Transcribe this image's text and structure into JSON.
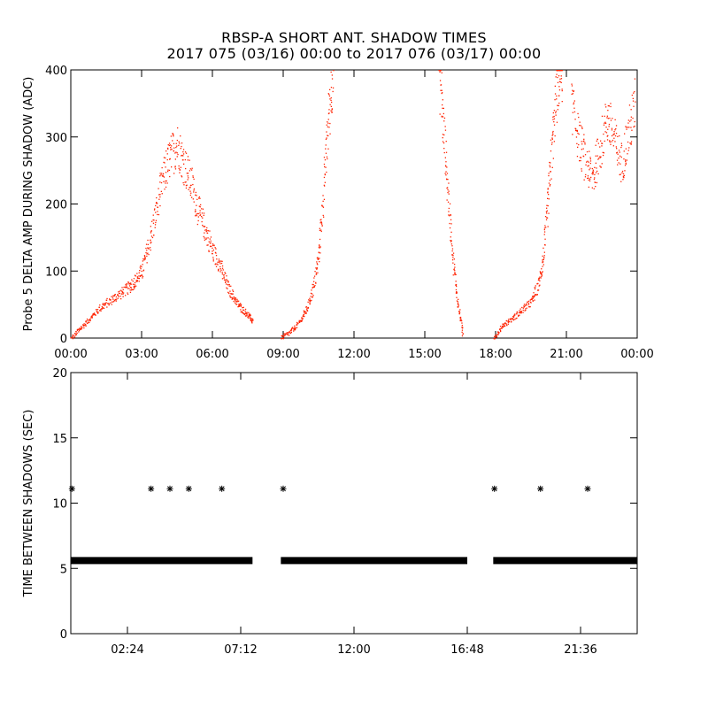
{
  "title_line1": "RBSP-A SHORT ANT. SHADOW TIMES",
  "title_line2": "2017 075 (03/16) 00:00 to 2017 076 (03/17) 00:00",
  "chart_data": [
    {
      "type": "scatter",
      "ylabel": "Probe 5 DELTA AMP DURING SHADOW (ADC)",
      "xlabel": "",
      "xlim_hours": [
        0,
        24
      ],
      "ylim": [
        0,
        400
      ],
      "x_tick_hours": [
        0,
        3,
        6,
        9,
        12,
        15,
        18,
        21,
        24
      ],
      "x_tick_labels": [
        "00:00",
        "03:00",
        "06:00",
        "09:00",
        "12:00",
        "15:00",
        "18:00",
        "21:00",
        "00:00"
      ],
      "y_ticks": [
        0,
        100,
        200,
        300,
        400
      ],
      "marker_color": "#ff2200",
      "segments": [
        {
          "x": [
            0.0,
            0.4,
            0.8,
            1.2,
            1.6,
            2.0,
            2.4,
            2.7,
            3.0,
            3.3,
            3.6,
            3.9,
            4.2,
            4.5,
            4.8,
            5.1,
            5.4,
            5.7,
            6.0,
            6.3,
            6.6,
            6.9,
            7.2,
            7.5,
            7.7
          ],
          "y": [
            0,
            15,
            30,
            45,
            55,
            65,
            75,
            85,
            100,
            140,
            190,
            240,
            270,
            290,
            260,
            230,
            190,
            160,
            130,
            110,
            80,
            60,
            45,
            35,
            25
          ]
        },
        {
          "x": [
            8.9,
            9.3,
            9.7,
            10.0,
            10.3,
            10.5,
            10.7,
            10.9,
            11.1
          ],
          "y": [
            0,
            10,
            25,
            45,
            80,
            130,
            220,
            330,
            400
          ]
        },
        {
          "x": [
            15.6,
            15.8,
            16.0,
            16.2,
            16.4,
            16.6
          ],
          "y": [
            400,
            300,
            200,
            110,
            50,
            5
          ]
        },
        {
          "x": [
            17.9,
            18.3,
            18.7,
            19.1,
            19.5,
            19.8,
            20.0,
            20.2,
            20.4,
            20.6,
            20.8
          ],
          "y": [
            0,
            20,
            30,
            42,
            55,
            80,
            120,
            200,
            300,
            380,
            400
          ]
        },
        {
          "x": [
            21.2,
            21.5,
            21.8,
            22.1,
            22.4,
            22.7,
            23.0,
            23.3,
            23.6,
            23.9
          ],
          "y": [
            350,
            300,
            260,
            240,
            280,
            330,
            300,
            260,
            300,
            350
          ]
        }
      ]
    },
    {
      "type": "scatter",
      "ylabel": "TIME BETWEEN SHADOWS (SEC)",
      "xlabel": "",
      "xlim_hours": [
        0,
        24
      ],
      "ylim": [
        0,
        20
      ],
      "x_tick_hours": [
        2.4,
        7.2,
        12.0,
        16.8,
        21.6
      ],
      "x_tick_labels": [
        "02:24",
        "07:12",
        "12:00",
        "16:48",
        "21:36"
      ],
      "y_ticks": [
        0,
        5,
        10,
        15,
        20
      ],
      "marker": "asterisk",
      "baseline_value": 5.6,
      "baseline_ranges_hours": [
        [
          0.0,
          7.7
        ],
        [
          8.9,
          16.8
        ],
        [
          17.9,
          24.0
        ]
      ],
      "outlier_hours": [
        0.05,
        3.4,
        4.2,
        5.0,
        6.4,
        9.0,
        17.95,
        19.9,
        21.9
      ],
      "outlier_value": 11.1
    }
  ]
}
